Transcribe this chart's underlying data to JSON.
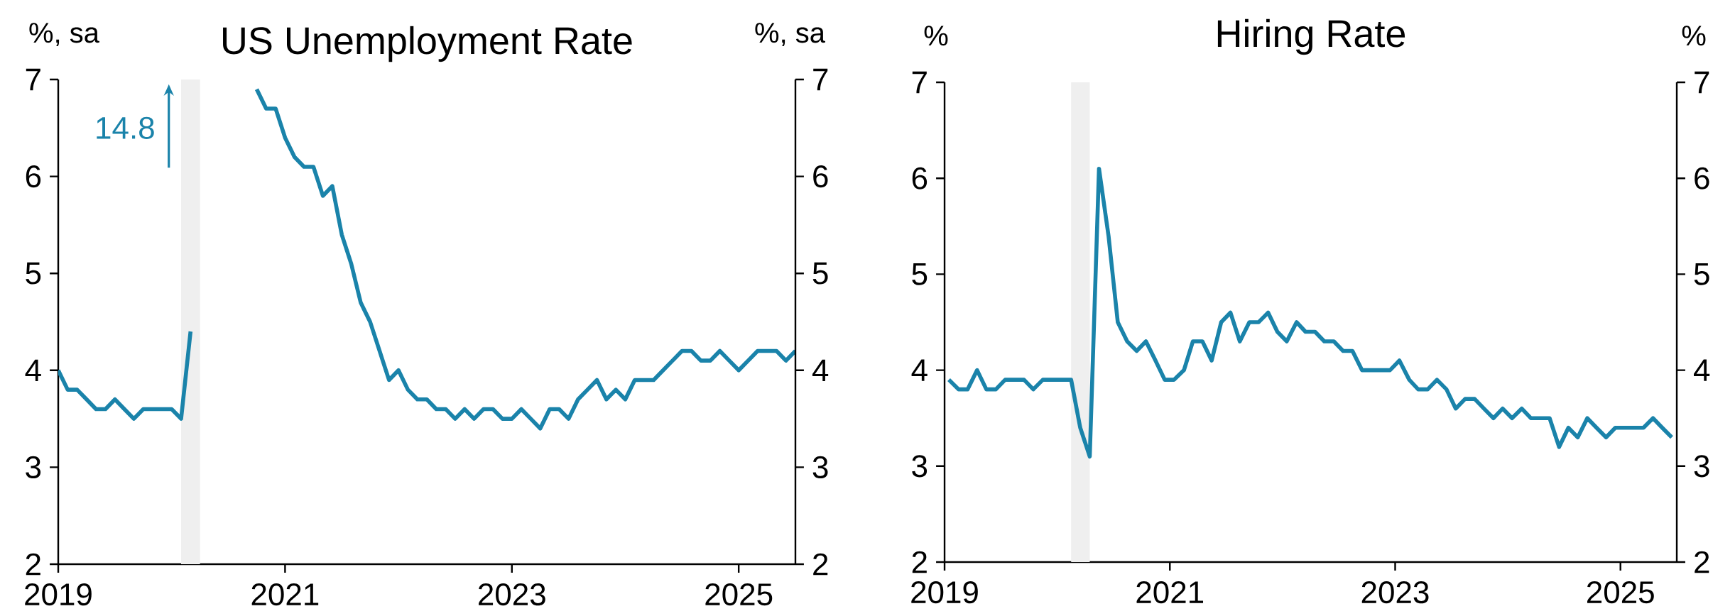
{
  "chart_data": [
    {
      "type": "line",
      "title": "US Unemployment Rate",
      "ylabel": "%, sa",
      "y2label": "%, sa",
      "color": "#1a83aa",
      "x": [
        "2019-01",
        "2019-02",
        "2019-03",
        "2019-04",
        "2019-05",
        "2019-06",
        "2019-07",
        "2019-08",
        "2019-09",
        "2019-10",
        "2019-11",
        "2019-12",
        "2020-01",
        "2020-02",
        "2020-03",
        "2020-04",
        "2020-05",
        "2020-06",
        "2020-07",
        "2020-08",
        "2020-09",
        "2020-10",
        "2020-11",
        "2020-12",
        "2021-01",
        "2021-02",
        "2021-03",
        "2021-04",
        "2021-05",
        "2021-06",
        "2021-07",
        "2021-08",
        "2021-09",
        "2021-10",
        "2021-11",
        "2021-12",
        "2022-01",
        "2022-02",
        "2022-03",
        "2022-04",
        "2022-05",
        "2022-06",
        "2022-07",
        "2022-08",
        "2022-09",
        "2022-10",
        "2022-11",
        "2022-12",
        "2023-01",
        "2023-02",
        "2023-03",
        "2023-04",
        "2023-05",
        "2023-06",
        "2023-07",
        "2023-08",
        "2023-09",
        "2023-10",
        "2023-11",
        "2023-12",
        "2024-01",
        "2024-02",
        "2024-03",
        "2024-04",
        "2024-05",
        "2024-06",
        "2024-07",
        "2024-08",
        "2024-09",
        "2024-10",
        "2024-11",
        "2024-12",
        "2025-01",
        "2025-02",
        "2025-03",
        "2025-04",
        "2025-05",
        "2025-06",
        "2025-07"
      ],
      "values": [
        4.0,
        3.8,
        3.8,
        3.7,
        3.6,
        3.6,
        3.7,
        3.6,
        3.5,
        3.6,
        3.6,
        3.6,
        3.6,
        3.5,
        4.4,
        null,
        null,
        null,
        null,
        null,
        null,
        6.9,
        6.7,
        6.7,
        6.4,
        6.2,
        6.1,
        6.1,
        5.8,
        5.9,
        5.4,
        5.1,
        4.7,
        4.5,
        4.2,
        3.9,
        4.0,
        3.8,
        3.7,
        3.7,
        3.6,
        3.6,
        3.5,
        3.6,
        3.5,
        3.6,
        3.6,
        3.5,
        3.5,
        3.6,
        3.5,
        3.4,
        3.6,
        3.6,
        3.5,
        3.7,
        3.8,
        3.9,
        3.7,
        3.8,
        3.7,
        3.9,
        3.9,
        3.9,
        4.0,
        4.1,
        4.2,
        4.2,
        4.1,
        4.1,
        4.2,
        4.1,
        4.0,
        4.1,
        4.2,
        4.2,
        4.2,
        4.1,
        4.2
      ],
      "xlim": [
        "2019-01",
        "2025-07"
      ],
      "xticks": [
        "2019",
        "2021",
        "2023",
        "2025"
      ],
      "ylim": [
        2,
        7
      ],
      "yticks": [
        2,
        3,
        4,
        5,
        6,
        7
      ],
      "y2lim": [
        2,
        7
      ],
      "y2ticks": [
        2,
        3,
        4,
        5,
        6,
        7
      ],
      "bands": [
        {
          "axis": "x",
          "from": "2020-02",
          "to": "2020-04",
          "color": "#efefef"
        }
      ],
      "annotations": [
        "14.8"
      ]
    },
    {
      "type": "line",
      "title": "Hiring Rate",
      "ylabel": "%",
      "y2label": "%",
      "color": "#1a83aa",
      "x": [
        "2019-01-15",
        "2019-02-15",
        "2019-03-15",
        "2019-04-15",
        "2019-05-15",
        "2019-06-15",
        "2019-07-15",
        "2019-08-15",
        "2019-09-15",
        "2019-10-15",
        "2019-11-15",
        "2019-12-15",
        "2020-01-15",
        "2020-02-15",
        "2020-03-15",
        "2020-04-15",
        "2020-05-15",
        "2020-06-15",
        "2020-07-15",
        "2020-08-15",
        "2020-09-15",
        "2020-10-15",
        "2020-11-15",
        "2020-12-15",
        "2021-01-15",
        "2021-02-15",
        "2021-03-15",
        "2021-04-15",
        "2021-05-15",
        "2021-06-15",
        "2021-07-15",
        "2021-08-15",
        "2021-09-15",
        "2021-10-15",
        "2021-11-15",
        "2021-12-15",
        "2022-01-15",
        "2022-02-15",
        "2022-03-15",
        "2022-04-15",
        "2022-05-15",
        "2022-06-15",
        "2022-07-15",
        "2022-08-15",
        "2022-09-15",
        "2022-10-15",
        "2022-11-15",
        "2022-12-15",
        "2023-01-15",
        "2023-02-15",
        "2023-03-15",
        "2023-04-15",
        "2023-05-15",
        "2023-06-15",
        "2023-07-15",
        "2023-08-15",
        "2023-09-15",
        "2023-10-15",
        "2023-11-15",
        "2023-12-15",
        "2024-01-15",
        "2024-02-15",
        "2024-03-15",
        "2024-04-15",
        "2024-05-15",
        "2024-06-15",
        "2024-07-15",
        "2024-08-15",
        "2024-09-15",
        "2024-10-15",
        "2024-11-15",
        "2024-12-15",
        "2025-01-15",
        "2025-02-15",
        "2025-03-15",
        "2025-04-15",
        "2025-05-15",
        "2025-06-15"
      ],
      "values": [
        3.9,
        3.8,
        3.8,
        4.0,
        3.8,
        3.8,
        3.9,
        3.9,
        3.9,
        3.8,
        3.9,
        3.9,
        3.9,
        3.9,
        3.4,
        3.1,
        6.1,
        5.4,
        4.5,
        4.3,
        4.2,
        4.3,
        4.1,
        3.9,
        3.9,
        4.0,
        4.3,
        4.3,
        4.1,
        4.5,
        4.6,
        4.3,
        4.5,
        4.5,
        4.6,
        4.4,
        4.3,
        4.5,
        4.4,
        4.4,
        4.3,
        4.3,
        4.2,
        4.2,
        4.0,
        4.0,
        4.0,
        4.0,
        4.1,
        3.9,
        3.8,
        3.8,
        3.9,
        3.8,
        3.6,
        3.7,
        3.7,
        3.6,
        3.5,
        3.6,
        3.5,
        3.6,
        3.5,
        3.5,
        3.5,
        3.2,
        3.4,
        3.3,
        3.5,
        3.4,
        3.3,
        3.4,
        3.4,
        3.4,
        3.4,
        3.5,
        3.4,
        3.3
      ],
      "xlim": [
        "2019-01",
        "2025-07"
      ],
      "xticks": [
        "2019",
        "2021",
        "2023",
        "2025"
      ],
      "ylim": [
        2,
        7
      ],
      "yticks": [
        2,
        3,
        4,
        5,
        6,
        7
      ],
      "y2lim": [
        2,
        7
      ],
      "y2ticks": [
        2,
        3,
        4,
        5,
        6,
        7
      ],
      "bands": [
        {
          "axis": "x",
          "from": "2020-02-15",
          "to": "2020-04-15",
          "color": "#efefef"
        }
      ]
    }
  ]
}
